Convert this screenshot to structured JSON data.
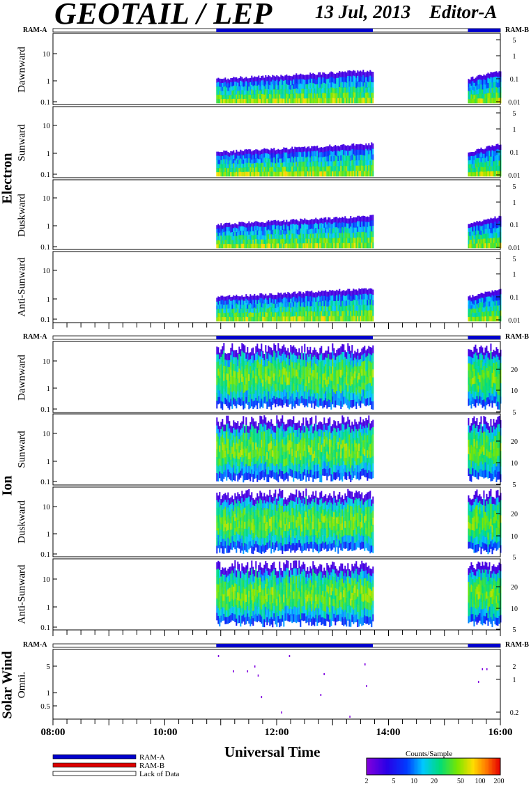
{
  "header": {
    "instrument": "GEOTAIL / LEP",
    "date": "13 Jul, 2013",
    "editor": "Editor-A"
  },
  "x_axis": {
    "label": "Universal Time",
    "ticks": [
      "08:00",
      "10:00",
      "12:00",
      "14:00",
      "16:00"
    ]
  },
  "groups": {
    "electron": "Electron",
    "ion": "Ion",
    "solar_wind": "Solar Wind"
  },
  "ram": {
    "a": "RAM-A",
    "b": "RAM-B"
  },
  "legend": {
    "ram_a": "RAM-A",
    "ram_b": "RAM-B",
    "lack": "Lack of Data",
    "ram_a_color": "#0000cc",
    "ram_b_color": "#dd0000"
  },
  "colorbar": {
    "title": "Counts/Sample",
    "ticks": [
      "2",
      "5",
      "10",
      "20",
      "50",
      "100",
      "200"
    ]
  },
  "chart_data": {
    "type": "heatmap",
    "time_range_hours": [
      8,
      16
    ],
    "ram_segments": [
      {
        "start": 10.92,
        "end": 13.72,
        "state": "RAM-A"
      },
      {
        "start": 15.42,
        "end": 16.0,
        "state": "RAM-A"
      }
    ],
    "data_intervals": [
      [
        10.92,
        13.72
      ],
      [
        15.42,
        16.0
      ]
    ],
    "panels": [
      {
        "group": "Electron",
        "label": "Dawnward",
        "left_ticks": [
          "10",
          "1",
          "0.1"
        ],
        "right_ticks": [
          "5",
          "1",
          "0.1",
          "0.01"
        ]
      },
      {
        "group": "Electron",
        "label": "Sunward",
        "left_ticks": [
          "10",
          "1",
          "0.1"
        ],
        "right_ticks": [
          "5",
          "1",
          "0.1",
          "0.01"
        ]
      },
      {
        "group": "Electron",
        "label": "Duskward",
        "left_ticks": [
          "10",
          "1",
          "0.1"
        ],
        "right_ticks": [
          "5",
          "1",
          "0.1",
          "0.01"
        ]
      },
      {
        "group": "Electron",
        "label": "Anti-Sunward",
        "left_ticks": [
          "10",
          "1",
          "0.1"
        ],
        "right_ticks": [
          "5",
          "1",
          "0.1",
          "0.01"
        ]
      },
      {
        "group": "Ion",
        "label": "Dawnward",
        "left_ticks": [
          "10",
          "1",
          "0.1"
        ],
        "right_ticks": [
          "20",
          "10",
          "5"
        ]
      },
      {
        "group": "Ion",
        "label": "Sunward",
        "left_ticks": [
          "10",
          "1",
          "0.1"
        ],
        "right_ticks": [
          "20",
          "10",
          "5"
        ]
      },
      {
        "group": "Ion",
        "label": "Duskward",
        "left_ticks": [
          "10",
          "1",
          "0.1"
        ],
        "right_ticks": [
          "20",
          "10",
          "5"
        ]
      },
      {
        "group": "Ion",
        "label": "Anti-Sunward",
        "left_ticks": [
          "10",
          "1",
          "0.1"
        ],
        "right_ticks": [
          "20",
          "10",
          "5"
        ]
      },
      {
        "group": "Solar Wind",
        "label": "Omni.",
        "left_ticks": [
          "5",
          "1",
          "0.5"
        ],
        "right_ticks": [
          "2",
          "1",
          "0.2"
        ]
      }
    ],
    "colorscale": {
      "label": "Counts/Sample",
      "min": 2,
      "max": 200,
      "scale": "log"
    }
  }
}
